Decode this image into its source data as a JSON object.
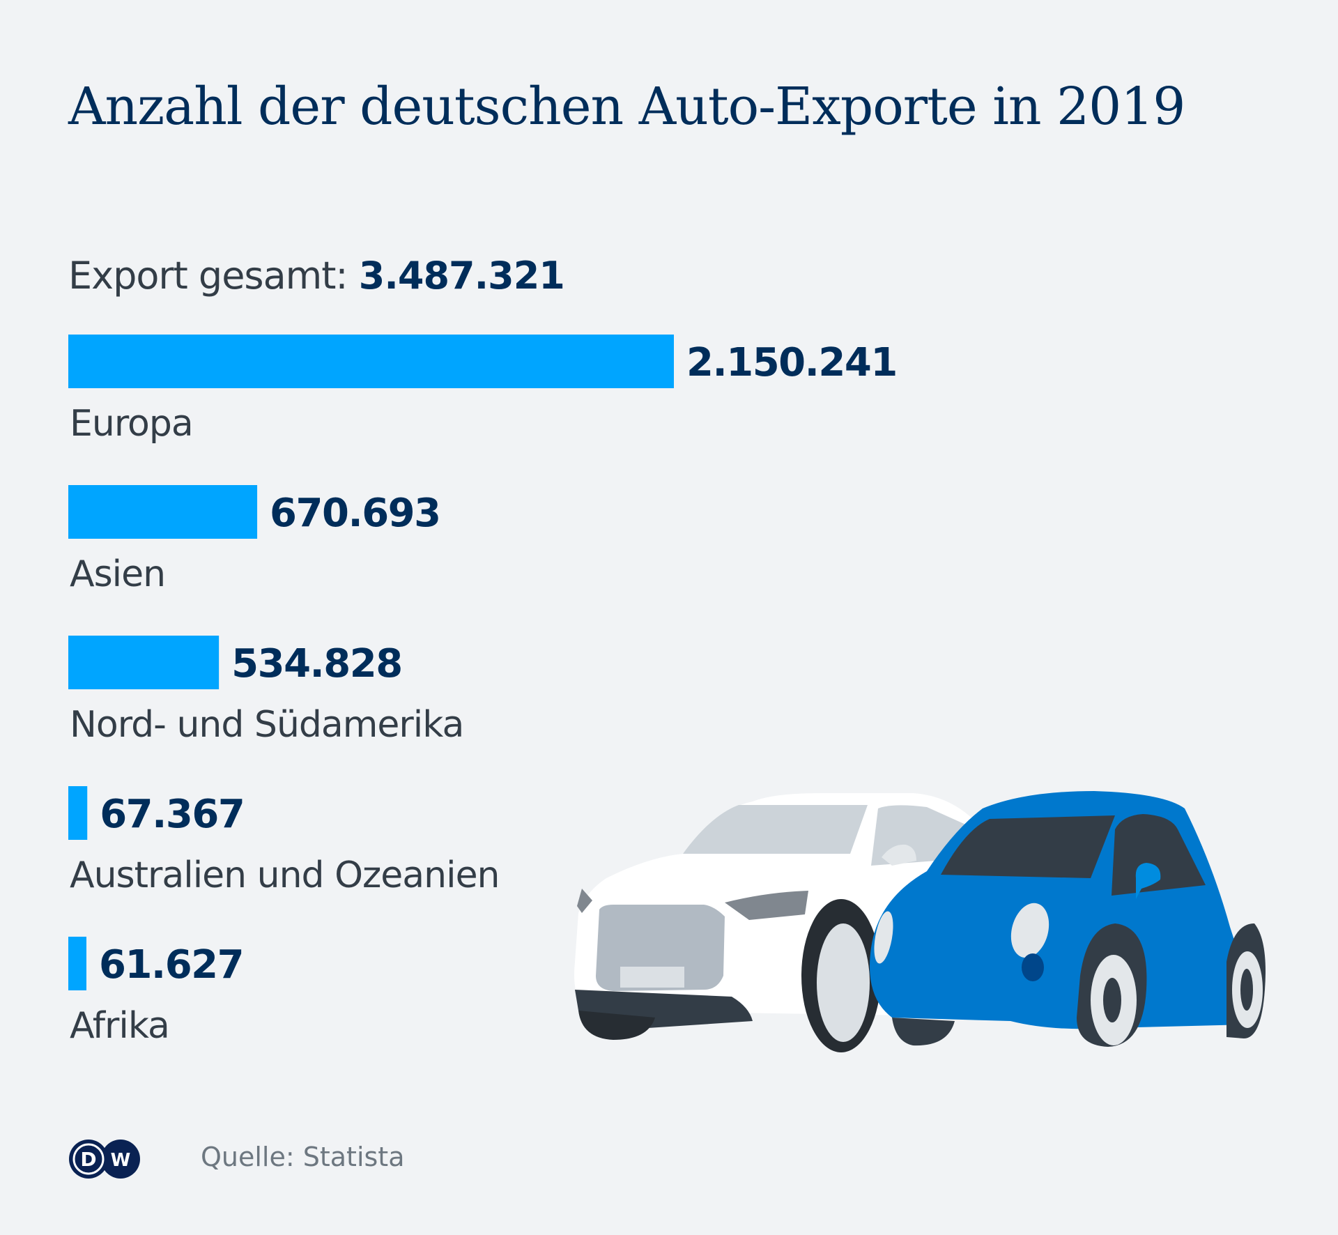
{
  "header": {
    "title": "Anzahl der deutschen Auto-Exporte in 2019",
    "total_label": "Export gesamt:",
    "total_value": "3.487.321"
  },
  "footer": {
    "source": "Quelle: Statista",
    "logo_text": "DW"
  },
  "colors": {
    "bar": "#00a5ff",
    "value_text": "#002d5a",
    "label_text": "#333d47",
    "background": "#f1f3f5"
  },
  "illustration": {
    "description": "white SUV and blue small car",
    "car1_color": "#ffffff",
    "car2_color": "#0078cd"
  },
  "chart_data": {
    "type": "bar",
    "orientation": "horizontal",
    "title": "Anzahl der deutschen Auto-Exporte in 2019",
    "subtitle": "Export gesamt: 3.487.321",
    "categories": [
      "Europa",
      "Asien",
      "Nord- und Südamerika",
      "Australien und Ozeanien",
      "Afrika"
    ],
    "values": [
      2150241,
      670693,
      534828,
      67367,
      61627
    ],
    "value_labels": [
      "2.150.241",
      "670.693",
      "534.828",
      "67.367",
      "61.627"
    ],
    "total": 3487321,
    "xlabel": "",
    "ylabel": "",
    "xlim": [
      0,
      2150241
    ],
    "grid": false,
    "legend": "none",
    "source": "Quelle: Statista"
  }
}
